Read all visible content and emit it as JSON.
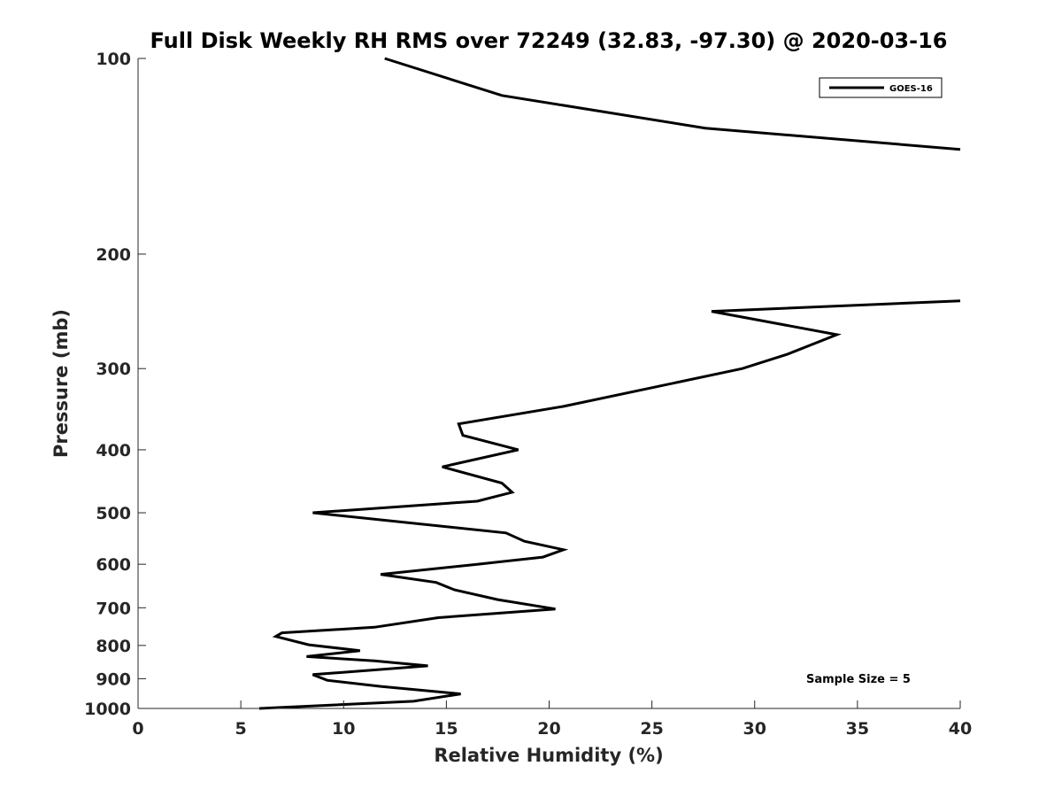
{
  "chart_data": {
    "type": "line",
    "title": "Full Disk Weekly RH RMS over 72249 (32.83, -97.30) @ 2020-03-16",
    "xlabel": "Relative Humidity (%)",
    "ylabel": "Pressure (mb)",
    "xlim": [
      0,
      40
    ],
    "ylim": [
      100,
      1000
    ],
    "yscale": "log",
    "y_reversed": true,
    "grid": false,
    "legend_position": "top-right",
    "xticks": [
      "0",
      "5",
      "10",
      "15",
      "20",
      "25",
      "30",
      "35",
      "40"
    ],
    "yticks": [
      "100",
      "200",
      "300",
      "400",
      "500",
      "600",
      "700",
      "800",
      "900",
      "1000"
    ],
    "series": [
      {
        "name": "GOES-16",
        "color": "#000000",
        "points": [
          [
            5.9,
            1000
          ],
          [
            13.4,
            975
          ],
          [
            15.7,
            950
          ],
          [
            11.8,
            925
          ],
          [
            9.2,
            905
          ],
          [
            8.5,
            887
          ],
          [
            14.1,
            860
          ],
          [
            11.5,
            845
          ],
          [
            8.2,
            832
          ],
          [
            10.8,
            815
          ],
          [
            8.3,
            798
          ],
          [
            6.7,
            775
          ],
          [
            7.0,
            765
          ],
          [
            11.5,
            750
          ],
          [
            14.6,
            725
          ],
          [
            20.3,
            703
          ],
          [
            17.5,
            680
          ],
          [
            15.4,
            657
          ],
          [
            14.5,
            640
          ],
          [
            11.8,
            622
          ],
          [
            16.5,
            600
          ],
          [
            19.7,
            585
          ],
          [
            20.7,
            570
          ],
          [
            18.8,
            553
          ],
          [
            17.9,
            537
          ],
          [
            8.5,
            500
          ],
          [
            16.5,
            480
          ],
          [
            18.2,
            465
          ],
          [
            17.7,
            450
          ],
          [
            14.8,
            425
          ],
          [
            18.5,
            400
          ],
          [
            15.8,
            380
          ],
          [
            15.6,
            365
          ],
          [
            20.7,
            343
          ],
          [
            29.4,
            300
          ],
          [
            31.6,
            285
          ],
          [
            34.0,
            266
          ],
          [
            27.9,
            245
          ],
          [
            40.0,
            236
          ]
        ],
        "points_upper": [
          [
            12.0,
            100
          ],
          [
            17.7,
            114
          ],
          [
            27.6,
            128
          ],
          [
            40.0,
            138
          ]
        ]
      }
    ],
    "annotations": [
      "Sample Size = 5"
    ]
  }
}
